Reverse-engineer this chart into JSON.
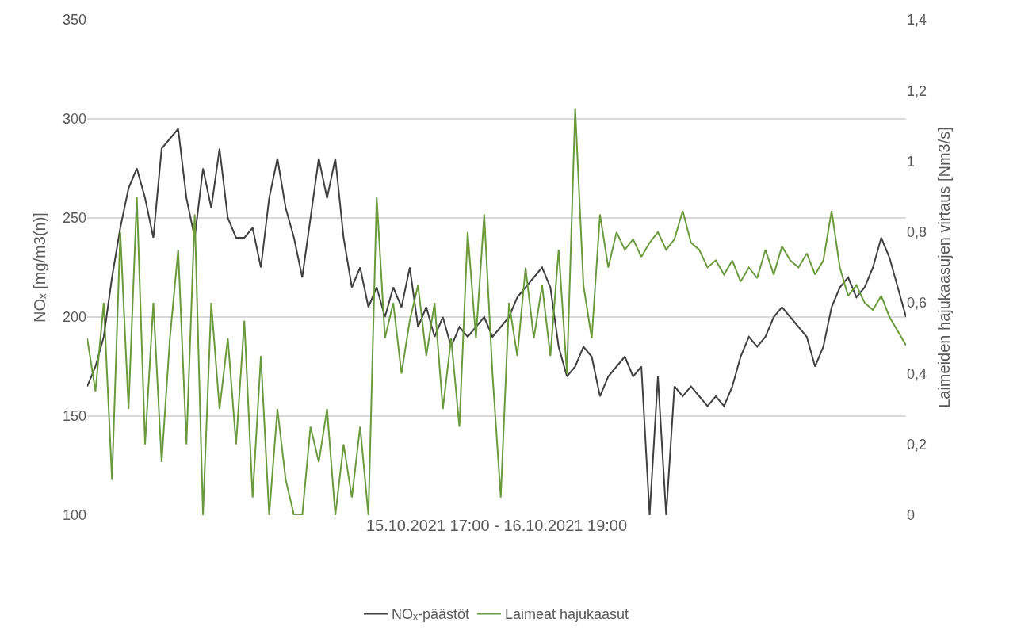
{
  "chart_data": {
    "type": "line",
    "xlabel": "15.10.2021 17:00 - 16.10.2021 19:00",
    "ylabel": "NOₓ [mg/m3(n)]",
    "y2label": "Laimeiden hajukaasujen virtaus [Nm3/s]",
    "categories": [
      null,
      null,
      null,
      null,
      null,
      null,
      null,
      null,
      null,
      null,
      null,
      null,
      null,
      null,
      null,
      null,
      null,
      null,
      null,
      null,
      null,
      null,
      null,
      null,
      null,
      null,
      null,
      null,
      null,
      null,
      null,
      null,
      null,
      null,
      null,
      null,
      null,
      null,
      null,
      null,
      null,
      null,
      null,
      null,
      null,
      null,
      null,
      null,
      null,
      null,
      null,
      null,
      null,
      null,
      null,
      null,
      null,
      null,
      null,
      null,
      null,
      null,
      null,
      null,
      null,
      null,
      null,
      null,
      null,
      null,
      null,
      null,
      null,
      null,
      null,
      null,
      null,
      null,
      null,
      null,
      null,
      null,
      null,
      null,
      null,
      null,
      null,
      null,
      null,
      null,
      null,
      null,
      null,
      null,
      null,
      null,
      null,
      null,
      null,
      null
    ],
    "series": [
      {
        "name": "NOₓ-päästöt",
        "color": "#404040",
        "values": [
          165,
          175,
          190,
          220,
          245,
          265,
          275,
          260,
          240,
          285,
          290,
          295,
          260,
          240,
          275,
          255,
          285,
          250,
          240,
          240,
          245,
          225,
          260,
          280,
          255,
          240,
          220,
          250,
          280,
          260,
          280,
          240,
          215,
          225,
          205,
          215,
          200,
          215,
          205,
          225,
          195,
          205,
          190,
          200,
          185,
          195,
          190,
          195,
          200,
          190,
          195,
          200,
          210,
          215,
          220,
          225,
          215,
          185,
          170,
          175,
          185,
          180,
          160,
          170,
          175,
          180,
          170,
          175,
          100,
          170,
          100,
          165,
          160,
          165,
          160,
          155,
          160,
          155,
          165,
          180,
          190,
          185,
          190,
          200,
          205,
          200,
          195,
          190,
          175,
          185,
          205,
          215,
          220,
          210,
          215,
          225,
          240,
          230,
          215,
          200
        ]
      },
      {
        "name": "Laimeat hajukaasut",
        "color": "#6a9a3c",
        "axis": "y2",
        "values": [
          0.5,
          0.35,
          0.6,
          0.1,
          0.8,
          0.3,
          0.9,
          0.2,
          0.6,
          0.15,
          0.5,
          0.75,
          0.2,
          0.85,
          0.0,
          0.6,
          0.3,
          0.5,
          0.2,
          0.55,
          0.05,
          0.45,
          0.0,
          0.3,
          0.1,
          0.0,
          0.0,
          0.25,
          0.15,
          0.3,
          0.0,
          0.2,
          0.05,
          0.25,
          0.0,
          0.9,
          0.5,
          0.6,
          0.4,
          0.55,
          0.65,
          0.45,
          0.6,
          0.3,
          0.5,
          0.25,
          0.8,
          0.5,
          0.85,
          0.4,
          0.05,
          0.6,
          0.45,
          0.7,
          0.5,
          0.65,
          0.45,
          0.75,
          0.4,
          1.15,
          0.65,
          0.5,
          0.85,
          0.7,
          0.8,
          0.75,
          0.78,
          0.73,
          0.77,
          0.8,
          0.75,
          0.78,
          0.86,
          0.77,
          0.75,
          0.7,
          0.72,
          0.68,
          0.72,
          0.66,
          0.7,
          0.67,
          0.75,
          0.68,
          0.76,
          0.72,
          0.7,
          0.74,
          0.68,
          0.72,
          0.86,
          0.7,
          0.62,
          0.65,
          0.6,
          0.58,
          0.62,
          0.56,
          0.52,
          0.48
        ]
      }
    ],
    "ylim": [
      100,
      350
    ],
    "yticks": [
      100,
      150,
      200,
      250,
      300,
      350
    ],
    "y2lim": [
      0,
      1.4
    ],
    "y2ticks": [
      0,
      {
        "value": 0.2,
        "label": "0,2"
      },
      {
        "value": 0.4,
        "label": "0,4"
      },
      {
        "value": 0.6,
        "label": "0,6"
      },
      {
        "value": 0.8,
        "label": "0,8"
      },
      {
        "value": 1.0,
        "label": "1"
      },
      {
        "value": 1.2,
        "label": "1,2"
      },
      {
        "value": 1.4,
        "label": "1,4"
      }
    ],
    "grid": "y",
    "legend": "bottom",
    "tick_labels": "y",
    "line_style": "solid",
    "marker": "none"
  }
}
